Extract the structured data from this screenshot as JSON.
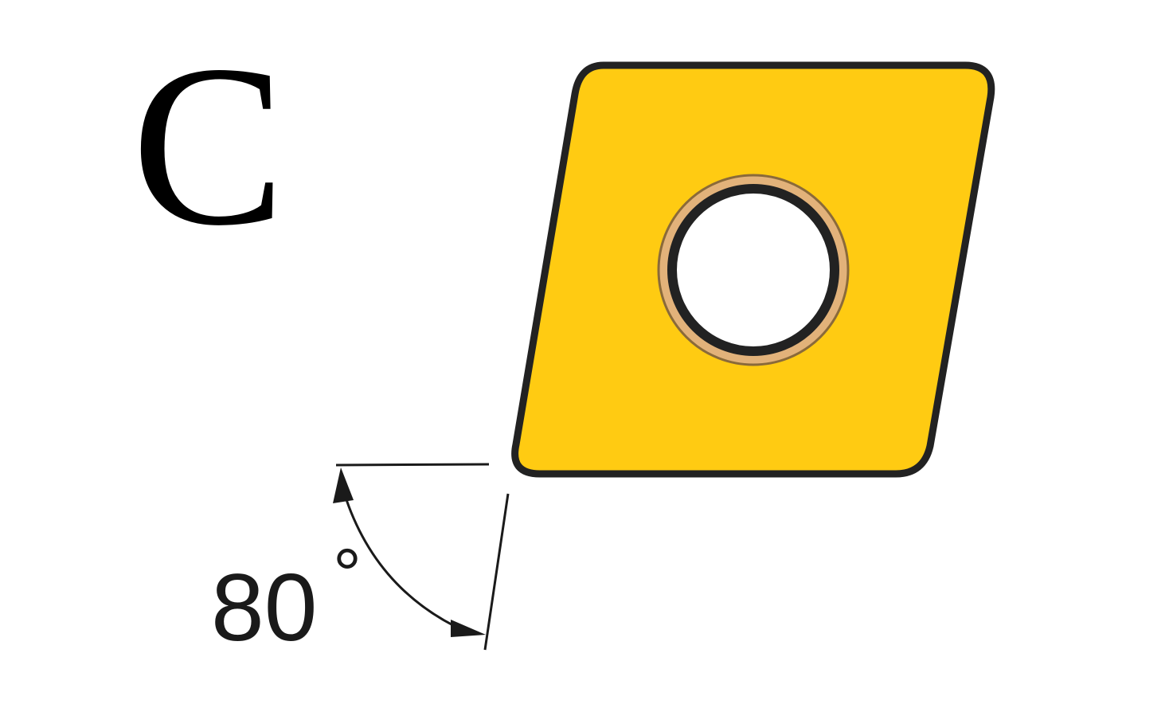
{
  "insert_shape": {
    "letter": "C",
    "angle_value": "80",
    "angle_unit": "°",
    "angle_degrees": 80
  },
  "colors": {
    "insert_fill": "#FFCB12",
    "insert_outline": "#222222",
    "hole_ring": "#E2B27A",
    "hole_fill": "#ffffff",
    "dimension_lines": "#1a1a1a"
  },
  "icons": {
    "insert": "rhombic-insert-icon",
    "hole": "center-hole-icon"
  }
}
